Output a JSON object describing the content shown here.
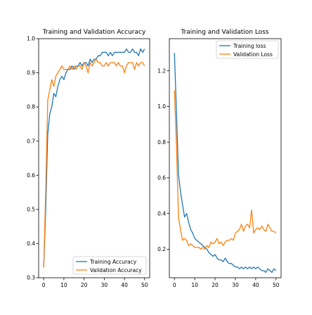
{
  "chart_data": [
    {
      "type": "line",
      "title": "Training and Validation Accuracy",
      "xlim": [
        -2.5,
        52.5
      ],
      "ylim": [
        0.3,
        1.0
      ],
      "xticks": [
        0,
        10,
        20,
        30,
        40,
        50
      ],
      "yticks": [
        0.3,
        0.4,
        0.5,
        0.6,
        0.7,
        0.8,
        0.9,
        1.0
      ],
      "xtick_labels": [
        "0",
        "10",
        "20",
        "30",
        "40",
        "50"
      ],
      "ytick_labels": [
        "0.3",
        "0.4",
        "0.5",
        "0.6",
        "0.7",
        "0.8",
        "0.9",
        "1.0"
      ],
      "legend_position": "lower right",
      "series": [
        {
          "name": "Training Accuracy",
          "color": "#1f77b4",
          "values": [
            0.33,
            0.5,
            0.72,
            0.78,
            0.8,
            0.84,
            0.83,
            0.86,
            0.88,
            0.89,
            0.88,
            0.9,
            0.91,
            0.91,
            0.92,
            0.91,
            0.92,
            0.92,
            0.93,
            0.92,
            0.93,
            0.93,
            0.92,
            0.94,
            0.93,
            0.94,
            0.94,
            0.95,
            0.95,
            0.96,
            0.96,
            0.96,
            0.95,
            0.96,
            0.95,
            0.96,
            0.96,
            0.96,
            0.96,
            0.96,
            0.96,
            0.97,
            0.96,
            0.96,
            0.97,
            0.96,
            0.96,
            0.95,
            0.97,
            0.96,
            0.97
          ]
        },
        {
          "name": "Validation Accuracy",
          "color": "#ff7f0e",
          "values": [
            0.33,
            0.55,
            0.82,
            0.85,
            0.88,
            0.86,
            0.89,
            0.9,
            0.91,
            0.92,
            0.91,
            0.91,
            0.91,
            0.92,
            0.91,
            0.92,
            0.91,
            0.92,
            0.92,
            0.91,
            0.93,
            0.92,
            0.9,
            0.93,
            0.92,
            0.93,
            0.94,
            0.93,
            0.93,
            0.92,
            0.92,
            0.93,
            0.92,
            0.93,
            0.93,
            0.93,
            0.92,
            0.93,
            0.92,
            0.92,
            0.9,
            0.92,
            0.93,
            0.93,
            0.93,
            0.91,
            0.93,
            0.92,
            0.93,
            0.93,
            0.92
          ]
        }
      ]
    },
    {
      "type": "line",
      "title": "Training and Validation Loss",
      "xlim": [
        -2.5,
        52.5
      ],
      "ylim": [
        0.04,
        1.38
      ],
      "xticks": [
        0,
        10,
        20,
        30,
        40,
        50
      ],
      "yticks": [
        0.2,
        0.4,
        0.6,
        0.8,
        1.0,
        1.2
      ],
      "xtick_labels": [
        "0",
        "10",
        "20",
        "30",
        "40",
        "50"
      ],
      "ytick_labels": [
        "0.2",
        "0.4",
        "0.6",
        "0.8",
        "1.0",
        "1.2"
      ],
      "legend_position": "upper right",
      "series": [
        {
          "name": "Training loss",
          "color": "#1f77b4",
          "values": [
            1.3,
            0.97,
            0.62,
            0.52,
            0.45,
            0.38,
            0.4,
            0.35,
            0.31,
            0.29,
            0.26,
            0.25,
            0.24,
            0.23,
            0.22,
            0.21,
            0.2,
            0.18,
            0.17,
            0.16,
            0.17,
            0.15,
            0.14,
            0.14,
            0.13,
            0.15,
            0.13,
            0.12,
            0.12,
            0.11,
            0.1,
            0.1,
            0.09,
            0.1,
            0.09,
            0.1,
            0.09,
            0.1,
            0.09,
            0.1,
            0.09,
            0.1,
            0.09,
            0.08,
            0.08,
            0.07,
            0.09,
            0.08,
            0.07,
            0.09,
            0.08
          ]
        },
        {
          "name": "Validation Loss",
          "color": "#ff7f0e",
          "values": [
            1.09,
            0.78,
            0.38,
            0.31,
            0.25,
            0.26,
            0.25,
            0.22,
            0.23,
            0.22,
            0.21,
            0.21,
            0.21,
            0.2,
            0.21,
            0.2,
            0.22,
            0.21,
            0.24,
            0.23,
            0.24,
            0.26,
            0.23,
            0.24,
            0.22,
            0.24,
            0.25,
            0.25,
            0.26,
            0.25,
            0.29,
            0.3,
            0.31,
            0.34,
            0.3,
            0.33,
            0.34,
            0.32,
            0.42,
            0.29,
            0.31,
            0.32,
            0.31,
            0.33,
            0.31,
            0.3,
            0.34,
            0.32,
            0.3,
            0.3,
            0.29
          ]
        }
      ]
    }
  ]
}
